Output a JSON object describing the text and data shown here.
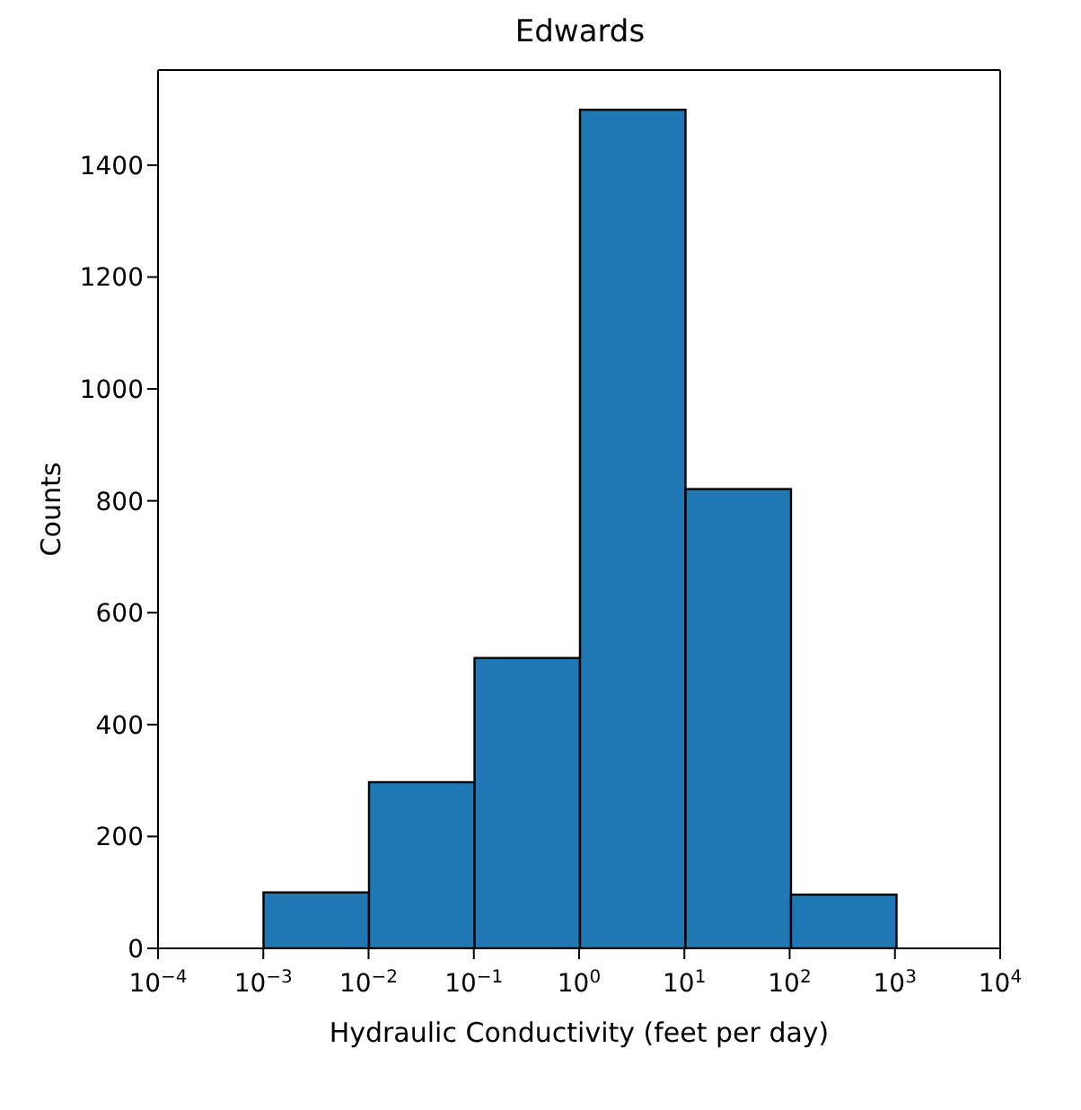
{
  "chart_data": {
    "type": "histogram",
    "title": "Edwards",
    "xlabel": "Hydraulic Conductivity (feet per day)",
    "ylabel": "Counts",
    "log": "x",
    "color": "#1f77b4",
    "bins": [
      0.0001,
      0.001,
      0.01,
      0.1,
      1,
      10,
      100,
      1000,
      10000
    ],
    "values": [
      0,
      100,
      297,
      519,
      1499,
      821,
      96,
      0
    ],
    "xlim": [
      0.0001,
      10000
    ],
    "xticks": [
      {
        "value": 0.0001,
        "label": "10$^{−4}$"
      },
      {
        "value": 0.001,
        "label": "10$^{−3}$"
      },
      {
        "value": 0.01,
        "label": "10$^{−2}$"
      },
      {
        "value": 0.1,
        "label": "10$^{−1}$"
      },
      {
        "value": 1,
        "label": "10$^{0}$"
      },
      {
        "value": 10,
        "label": "10$^{1}$"
      },
      {
        "value": 100,
        "label": "10$^{2}$"
      },
      {
        "value": 1000,
        "label": "10$^{3}$"
      },
      {
        "value": 10000,
        "label": "10$^{4}$"
      }
    ],
    "ylim": [
      0,
      1570
    ],
    "yticks": [
      0,
      200,
      400,
      600,
      800,
      1000,
      1200,
      1400
    ],
    "grid": false
  }
}
